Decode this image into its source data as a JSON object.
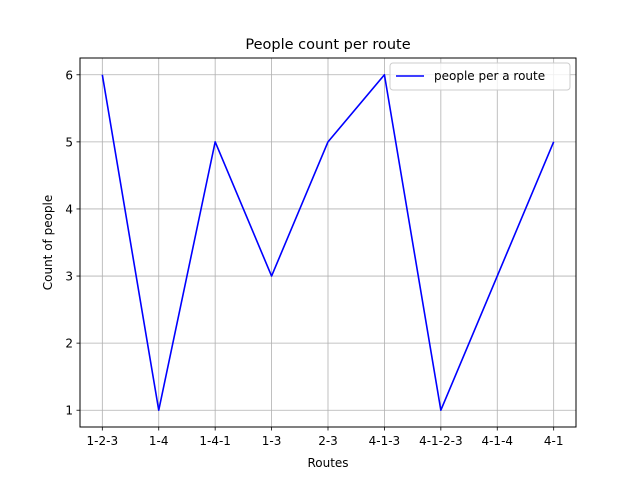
{
  "chart_data": {
    "type": "line",
    "title": "People count per route",
    "xlabel": "Routes",
    "ylabel": "Count of people",
    "categories": [
      "1-2-3",
      "1-4",
      "1-4-1",
      "1-3",
      "2-3",
      "4-1-3",
      "4-1-2-3",
      "4-1-4",
      "4-1"
    ],
    "series": [
      {
        "name": "people per a route",
        "values": [
          6,
          1,
          5,
          3,
          5,
          6,
          1,
          3,
          5
        ],
        "color": "#0000ff"
      }
    ],
    "ylim": [
      0.75,
      6.25
    ],
    "yticks": [
      1,
      2,
      3,
      4,
      5,
      6
    ],
    "grid": true,
    "legend_position": "top-right"
  }
}
